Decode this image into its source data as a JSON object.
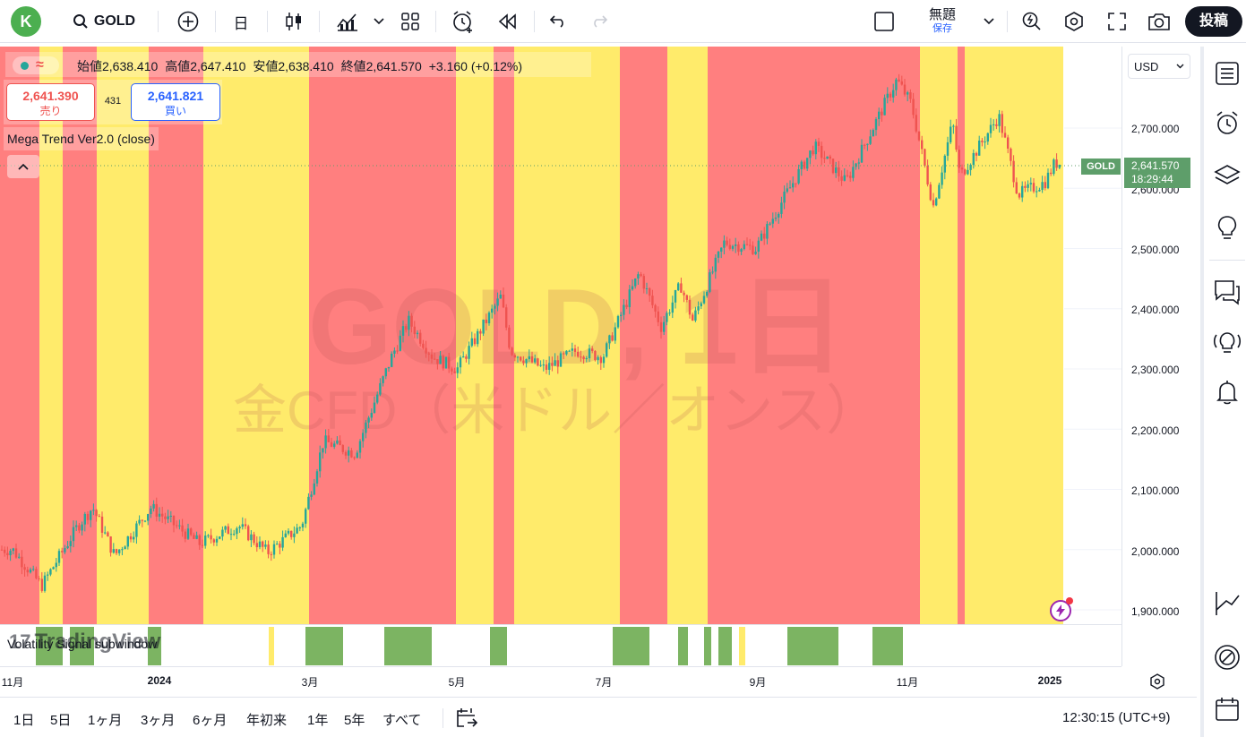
{
  "topbar": {
    "avatar_letter": "K",
    "symbol": "GOLD",
    "interval": "日",
    "layout_name": "無題",
    "layout_status": "保存",
    "publish_label": "投稿"
  },
  "legend": {
    "open_label": "始値",
    "open_value": "2,638.410",
    "high_label": "高値",
    "high_value": "2,647.410",
    "low_label": "安値",
    "low_value": "2,638.410",
    "close_label": "終値",
    "close_value": "2,641.570",
    "change": "+3.160 (+0.12%)",
    "sell_price": "2,641.390",
    "sell_label": "売り",
    "spread": "431",
    "buy_price": "2,641.821",
    "buy_label": "買い",
    "indicator": "Mega Trend Ver2.0 (close)",
    "subwindow": "Volatility Signal subwindow"
  },
  "watermark": {
    "title": "GOLD, 1日",
    "subtitle": "金CFD（米ドル／オンス）"
  },
  "logo_text": "TradingView",
  "price_axis": {
    "currency": "USD",
    "labels": [
      "2,700.000",
      "2,600.000",
      "2,500.000",
      "2,400.000",
      "2,300.000",
      "2,200.000",
      "2,100.000",
      "2,000.000",
      "1,900.000"
    ],
    "last_price": "2,641.570",
    "countdown": "18:29:44",
    "symbol_tag": "GOLD"
  },
  "time_axis": {
    "labels": [
      "11月",
      "2024",
      "3月",
      "5月",
      "7月",
      "9月",
      "11月",
      "2025"
    ]
  },
  "ranges": [
    "1日",
    "5日",
    "1ヶ月",
    "3ヶ月",
    "6ヶ月",
    "年初来",
    "1年",
    "5年",
    "すべて"
  ],
  "clock": "12:30:15 (UTC+9)",
  "colors": {
    "bull": "#26a69a",
    "bear": "#ef5350",
    "trend_red": "#ff7f7f",
    "trend_yellow": "#ffeb6b",
    "signal_green": "#7cb462",
    "last_price_tag": "#5e9e6a"
  },
  "chart_data": {
    "type": "candlestick",
    "title": "GOLD, 1日",
    "subtitle": "金CFD（米ドル／オンス）",
    "ylim": [
      1880,
      2790
    ],
    "y_ticks": [
      1900,
      2000,
      2100,
      2200,
      2300,
      2400,
      2500,
      2600,
      2700
    ],
    "x_ticks": [
      "11月",
      "2024",
      "3月",
      "5月",
      "7月",
      "9月",
      "11月",
      "2025"
    ],
    "close_path": [
      [
        "2023-11-01",
        2000
      ],
      [
        "2023-11-13",
        1940
      ],
      [
        "2023-11-28",
        2040
      ],
      [
        "2023-12-04",
        2070
      ],
      [
        "2023-12-13",
        1990
      ],
      [
        "2023-12-28",
        2070
      ],
      [
        "2024-01-17",
        2010
      ],
      [
        "2024-02-02",
        2040
      ],
      [
        "2024-02-14",
        1995
      ],
      [
        "2024-02-28",
        2040
      ],
      [
        "2024-03-08",
        2180
      ],
      [
        "2024-03-21",
        2160
      ],
      [
        "2024-04-05",
        2320
      ],
      [
        "2024-04-12",
        2380
      ],
      [
        "2024-04-22",
        2320
      ],
      [
        "2024-05-02",
        2300
      ],
      [
        "2024-05-20",
        2420
      ],
      [
        "2024-05-24",
        2330
      ],
      [
        "2024-06-07",
        2300
      ],
      [
        "2024-06-20",
        2330
      ],
      [
        "2024-07-01",
        2320
      ],
      [
        "2024-07-16",
        2460
      ],
      [
        "2024-07-25",
        2370
      ],
      [
        "2024-08-02",
        2440
      ],
      [
        "2024-08-07",
        2380
      ],
      [
        "2024-08-20",
        2510
      ],
      [
        "2024-09-02",
        2500
      ],
      [
        "2024-09-13",
        2580
      ],
      [
        "2024-09-26",
        2670
      ],
      [
        "2024-10-09",
        2610
      ],
      [
        "2024-10-30",
        2780
      ],
      [
        "2024-11-05",
        2740
      ],
      [
        "2024-11-14",
        2570
      ],
      [
        "2024-11-22",
        2710
      ],
      [
        "2024-11-25",
        2620
      ],
      [
        "2024-12-11",
        2720
      ],
      [
        "2024-12-19",
        2590
      ],
      [
        "2024-12-30",
        2610
      ],
      [
        "2025-01-03",
        2641.57
      ]
    ],
    "trend_bands": [
      [
        "red",
        0,
        44
      ],
      [
        "yellow",
        44,
        70
      ],
      [
        "red",
        70,
        108
      ],
      [
        "yellow",
        108,
        166
      ],
      [
        "red",
        166,
        227
      ],
      [
        "yellow",
        227,
        345
      ],
      [
        "red",
        345,
        509
      ],
      [
        "yellow",
        509,
        551
      ],
      [
        "red",
        551,
        574
      ],
      [
        "yellow",
        574,
        692
      ],
      [
        "red",
        692,
        745
      ],
      [
        "yellow",
        745,
        790
      ],
      [
        "red",
        790,
        1027
      ],
      [
        "yellow",
        1027,
        1069
      ],
      [
        "red",
        1069,
        1077
      ],
      [
        "yellow",
        1077,
        1187
      ]
    ],
    "signal_blocks": [
      [
        40,
        70
      ],
      [
        78,
        105
      ],
      [
        165,
        180
      ],
      [
        300,
        306
      ],
      [
        341,
        383
      ],
      [
        429,
        482
      ],
      [
        547,
        566
      ],
      [
        684,
        725
      ],
      [
        757,
        768
      ],
      [
        786,
        794
      ],
      [
        802,
        817
      ],
      [
        825,
        832
      ],
      [
        879,
        936
      ],
      [
        974,
        1008
      ]
    ]
  }
}
